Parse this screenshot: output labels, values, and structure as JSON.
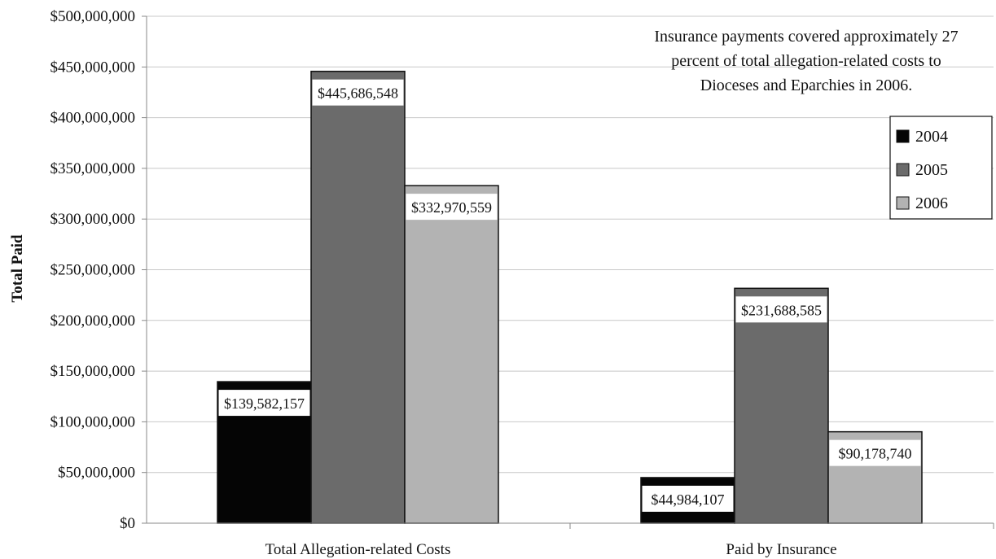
{
  "chart_data": {
    "type": "bar",
    "title": "",
    "xlabel": "",
    "ylabel": "Total Paid",
    "categories": [
      "Total Allegation-related Costs",
      "Paid by Insurance"
    ],
    "series": [
      {
        "name": "2004",
        "values": [
          139582157,
          44984107
        ],
        "color": "#050505",
        "labels": [
          "$139,582,157",
          "$44,984,107"
        ]
      },
      {
        "name": "2005",
        "values": [
          445686548,
          231688585
        ],
        "color": "#6b6b6b",
        "labels": [
          "$445,686,548",
          "$231,688,585"
        ]
      },
      {
        "name": "2006",
        "values": [
          332970559,
          90178740
        ],
        "color": "#b3b3b3",
        "labels": [
          "$332,970,559",
          "$90,178,740"
        ]
      }
    ],
    "ylim": [
      0,
      500000000
    ],
    "yticks": [
      0,
      50000000,
      100000000,
      150000000,
      200000000,
      250000000,
      300000000,
      350000000,
      400000000,
      450000000,
      500000000
    ],
    "ytick_labels": [
      "$0",
      "$50,000,000",
      "$100,000,000",
      "$150,000,000",
      "$200,000,000",
      "$250,000,000",
      "$300,000,000",
      "$350,000,000",
      "$400,000,000",
      "$450,000,000",
      "$500,000,000"
    ],
    "grid": true,
    "legend_position": "right",
    "annotation": [
      "Insurance payments covered approximately 27",
      "percent of total allegation-related costs to",
      "Dioceses and Eparchies in 2006."
    ]
  }
}
